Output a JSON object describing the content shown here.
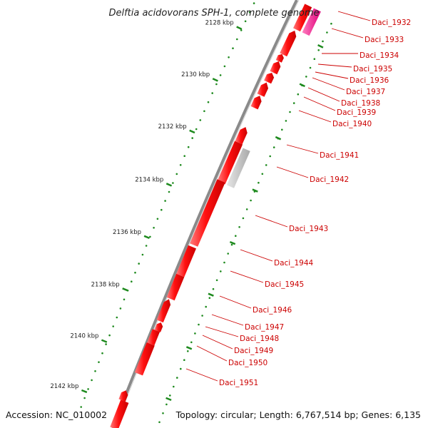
{
  "title": "Delftia acidovorans SPH-1, complete genome",
  "footer": {
    "accession": "Accession: NC_010002",
    "topology": "Topology: circular; Length: 6,767,514 bp; Genes: 6,135"
  },
  "colors": {
    "gene": "#ee1111",
    "gene_light": "#ff6a6a",
    "gene_gray": "#c4c4c4",
    "gene_pink": "#f5b0c8",
    "gene_magenta": "#ec1e8e",
    "backbone": "#8a8a8a",
    "tick": "#1e8a1e",
    "label": "#cc0000"
  },
  "ticks": [
    "2128 kbp",
    "2130 kbp",
    "2132 kbp",
    "2134 kbp",
    "2136 kbp",
    "2138 kbp",
    "2140 kbp",
    "2142 kbp"
  ],
  "genes": [
    "Daci_1932",
    "Daci_1933",
    "Daci_1934",
    "Daci_1935",
    "Daci_1936",
    "Daci_1937",
    "Daci_1938",
    "Daci_1939",
    "Daci_1940",
    "Daci_1941",
    "Daci_1942",
    "Daci_1943",
    "Daci_1944",
    "Daci_1945",
    "Daci_1946",
    "Daci_1947",
    "Daci_1948",
    "Daci_1949",
    "Daci_1950",
    "Daci_1951"
  ]
}
